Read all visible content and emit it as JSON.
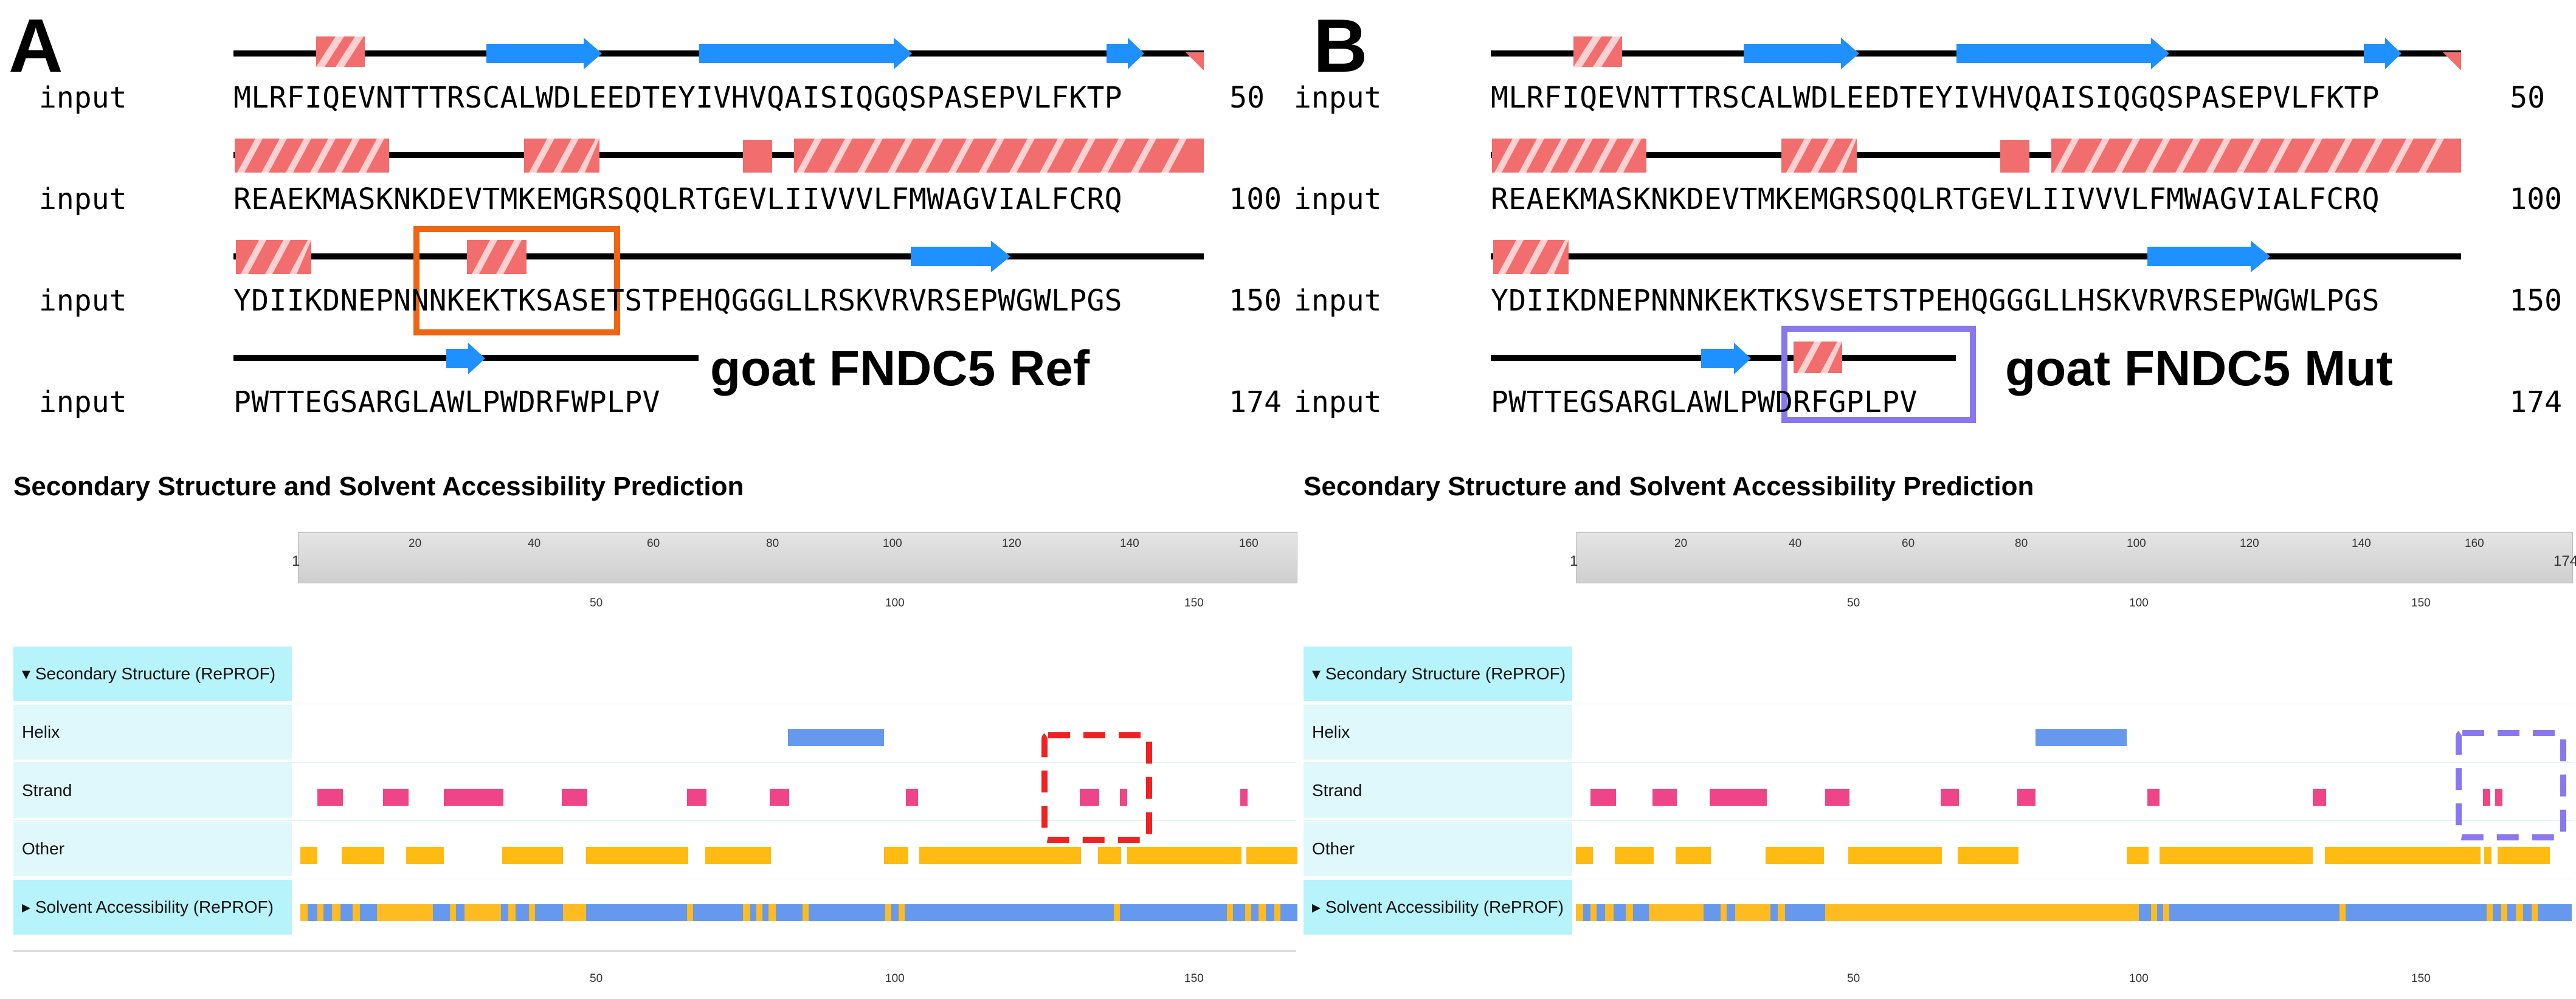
{
  "panels": [
    {
      "letter": "A",
      "title": "goat FNDC5 Ref",
      "seq_rows": [
        {
          "label": "input",
          "seq": "MLRFIQEVNTTTRSCALWDLEEDTEYIVHVQAISIQGQSPASEPVLFKTP",
          "end": "50"
        },
        {
          "label": "input",
          "seq": "REAEKMASKNKDEVTMKEMGRSQQLRTGEVLIIVVVLFMWAGVIALFCRQ",
          "end": "100"
        },
        {
          "label": "input",
          "seq": "YDIIKDNEPNNNKEKTKSASETSTPEHQGGGLLRSKVRVRSEPWGWLPGS",
          "end": "150"
        },
        {
          "label": "input",
          "seq": "PWTTEGSARGLAWLPWDRFWPLPV",
          "end": "174"
        }
      ],
      "section_title": "Secondary Structure and Solvent Accessibility Prediction",
      "ruler_ticks": [
        "1",
        "20",
        "40",
        "60",
        "80",
        "100",
        "120",
        "140",
        "160"
      ],
      "ruler_sub": [
        "50",
        "100",
        "150"
      ],
      "rows": {
        "head1": "Secondary Structure (RePROF)",
        "helix": "Helix",
        "strand": "Strand",
        "other": "Other",
        "head2": "Solvent Accessibility (RePROF)"
      },
      "colors": {
        "helix": "#6699ee",
        "strand": "#ee4488",
        "other": "#ffbb11",
        "solvent_blue": "#6699ee",
        "solvent_orange": "#ffbb22",
        "box": "#ee6611",
        "dash": "#ee2222"
      }
    },
    {
      "letter": "B",
      "title": "goat FNDC5 Mut",
      "seq_rows": [
        {
          "label": "input",
          "seq": "MLRFIQEVNTTTRSCALWDLEEDTEYIVHVQAISIQGQSPASEPVLFKTP",
          "end": "50"
        },
        {
          "label": "input",
          "seq": "REAEKMASKNKDEVTMKEMGRSQQLRTGEVLIIVVVLFMWAGVIALFCRQ",
          "end": "100"
        },
        {
          "label": "input",
          "seq": "YDIIKDNEPNNNKEKTKSVSETSTPEHQGGGLLHSKVRVRSEPWGWLPGS",
          "end": "150"
        },
        {
          "label": "input",
          "seq": "PWTTEGSARGLAWLPWDRFGPLPV",
          "end": "174"
        }
      ],
      "section_title": "Secondary Structure and Solvent Accessibility Prediction",
      "ruler_ticks": [
        "1",
        "20",
        "40",
        "60",
        "80",
        "100",
        "120",
        "140",
        "160",
        "174"
      ],
      "ruler_sub": [
        "50",
        "100",
        "150"
      ],
      "rows": {
        "head1": "Secondary Structure (RePROF)",
        "helix": "Helix",
        "strand": "Strand",
        "other": "Other",
        "head2": "Solvent Accessibility (RePROF)"
      },
      "colors": {
        "helix": "#6699ee",
        "strand": "#ee4488",
        "other": "#ffbb11",
        "solvent_blue": "#6699ee",
        "solvent_orange": "#ffbb22",
        "box": "#8877ee",
        "dash": "#8877ee"
      }
    }
  ],
  "bottom_axis": [
    "50",
    "100",
    "150"
  ]
}
